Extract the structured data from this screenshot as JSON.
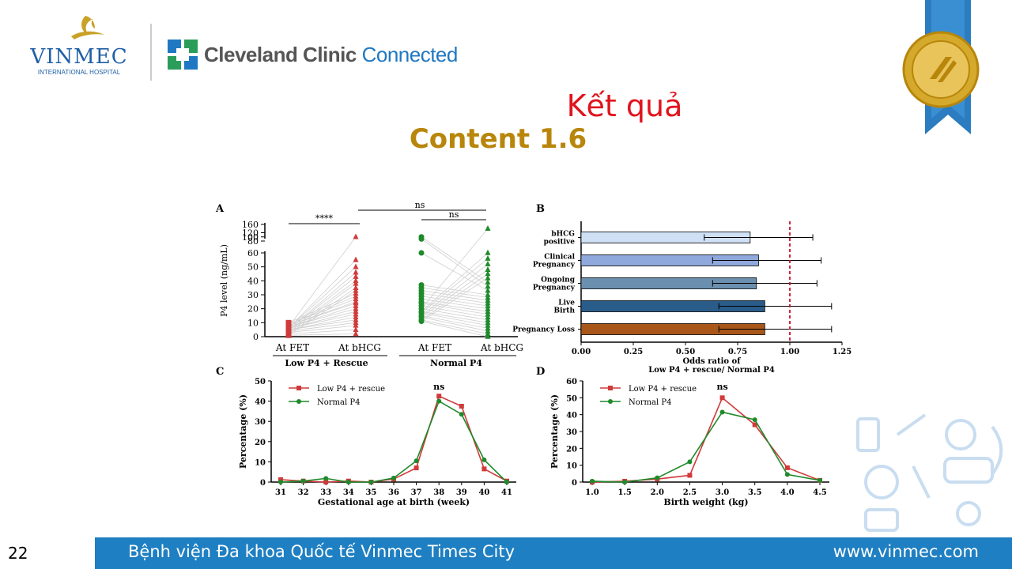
{
  "header": {
    "vinmec_name": "VINMEC",
    "vinmec_sub": "INTERNATIONAL HOSPITAL",
    "cc_brand": "Cleveland Clinic",
    "cc_connected": "Connected",
    "seal_icon": "joint-commission-seal-icon"
  },
  "slide": {
    "title": "Kết quả",
    "subtitle": "Content 1.6",
    "page_number": "22"
  },
  "footer": {
    "left_text": "Bệnh viện Đa khoa Quốc tế Vinmec Times City",
    "right_text": "www.vinmec.com",
    "bar_color": "#1e7fc2"
  },
  "colors": {
    "title_red": "#e0141e",
    "subtitle_gold": "#b8860b",
    "low_p4": "#d03a3a",
    "normal_p4": "#1e8a2a"
  },
  "chart_data": [
    {
      "panel": "A",
      "type": "scatter",
      "ylabel": "P4 level  (ng/mL)",
      "yticks": [
        0,
        10,
        20,
        30,
        40,
        50,
        60,
        80,
        100,
        120,
        160
      ],
      "categories": [
        "At FET",
        "At bHCG",
        "At FET",
        "At bHCG"
      ],
      "groups": [
        "Low P4 + Rescue",
        "Normal P4"
      ],
      "annotations": [
        "****",
        "ns",
        "ns"
      ],
      "series": [
        {
          "name": "Low P4 + Rescue At FET",
          "color": "#d03a3a",
          "marker": "square",
          "values": [
            1,
            2,
            3,
            4,
            5,
            5,
            6,
            6,
            7,
            7,
            8,
            8,
            9,
            9,
            10
          ]
        },
        {
          "name": "Low P4 + Rescue At bHCG",
          "color": "#d03a3a",
          "marker": "triangle",
          "values": [
            2,
            5,
            8,
            10,
            12,
            14,
            16,
            18,
            20,
            22,
            24,
            25,
            27,
            29,
            31,
            33,
            35,
            38,
            40,
            43,
            46,
            50,
            55,
            100
          ]
        },
        {
          "name": "Normal P4 At FET",
          "color": "#1e8a2a",
          "marker": "circle",
          "values": [
            11,
            12,
            14,
            15,
            17,
            18,
            20,
            22,
            24,
            25,
            27,
            29,
            31,
            33,
            35,
            37,
            60,
            90,
            100
          ]
        },
        {
          "name": "Normal P4 At bHCG",
          "color": "#1e8a2a",
          "marker": "triangle",
          "values": [
            0,
            2,
            4,
            6,
            8,
            10,
            12,
            14,
            16,
            18,
            20,
            22,
            24,
            26,
            28,
            30,
            33,
            36,
            39,
            42,
            45,
            48,
            52,
            56,
            60,
            140
          ]
        }
      ]
    },
    {
      "panel": "B",
      "type": "bar",
      "orientation": "horizontal",
      "xlabel": "Odds ratio of\nLow P4 + rescue/ Normal  P4",
      "xticks": [
        "0.00",
        "0.25",
        "0.50",
        "0.75",
        "1.00",
        "1.25"
      ],
      "xlim": [
        0,
        1.25
      ],
      "reference_line": 1.0,
      "categories": [
        "bHCG positive",
        "Clinical Pregnancy",
        "Ongoing Pregnancy",
        "Live Birth",
        "Pregnancy Loss"
      ],
      "values": [
        0.81,
        0.85,
        0.84,
        0.88,
        0.88
      ],
      "ci_low": [
        0.59,
        0.63,
        0.63,
        0.66,
        0.66
      ],
      "ci_high": [
        1.11,
        1.15,
        1.13,
        1.2,
        1.2
      ],
      "colors": [
        "#cfe0f4",
        "#8fa9dc",
        "#6b8fae",
        "#2a5c8a",
        "#a8561a"
      ]
    },
    {
      "panel": "C",
      "type": "line",
      "xlabel": "Gestational age at birth (week)",
      "ylabel": "Percentage (%)",
      "x": [
        31,
        32,
        33,
        34,
        35,
        36,
        37,
        38,
        39,
        40,
        41
      ],
      "ylim": [
        0,
        50
      ],
      "yticks": [
        0,
        10,
        20,
        30,
        40,
        50
      ],
      "annotation": "ns",
      "series": [
        {
          "name": "Low P4 + rescue",
          "color": "#d03a3a",
          "marker": "square",
          "values": [
            1.2,
            0.5,
            0,
            0.5,
            0,
            1.5,
            7,
            42.5,
            37.5,
            6.5,
            0.5
          ]
        },
        {
          "name": "Normal P4",
          "color": "#1e8a2a",
          "marker": "circle",
          "values": [
            0,
            0.5,
            1.8,
            0,
            0,
            2,
            10.5,
            40,
            33.5,
            11,
            0
          ]
        }
      ]
    },
    {
      "panel": "D",
      "type": "line",
      "xlabel": "Birth weight (kg)",
      "ylabel": "Percentage (%)",
      "x": [
        "1.0",
        "1.5",
        "2.0",
        "2.5",
        "3.0",
        "3.5",
        "4.0",
        "4.5"
      ],
      "ylim": [
        0,
        60
      ],
      "yticks": [
        0,
        10,
        20,
        30,
        40,
        50,
        60
      ],
      "annotation": "ns",
      "series": [
        {
          "name": "Low P4 + rescue",
          "color": "#d03a3a",
          "marker": "square",
          "values": [
            0,
            0.5,
            1.8,
            4,
            50,
            34,
            8.5,
            1
          ]
        },
        {
          "name": "Normal P4",
          "color": "#1e8a2a",
          "marker": "circle",
          "values": [
            0.5,
            0,
            2.5,
            12,
            41.5,
            37,
            4.5,
            1
          ]
        }
      ]
    }
  ]
}
